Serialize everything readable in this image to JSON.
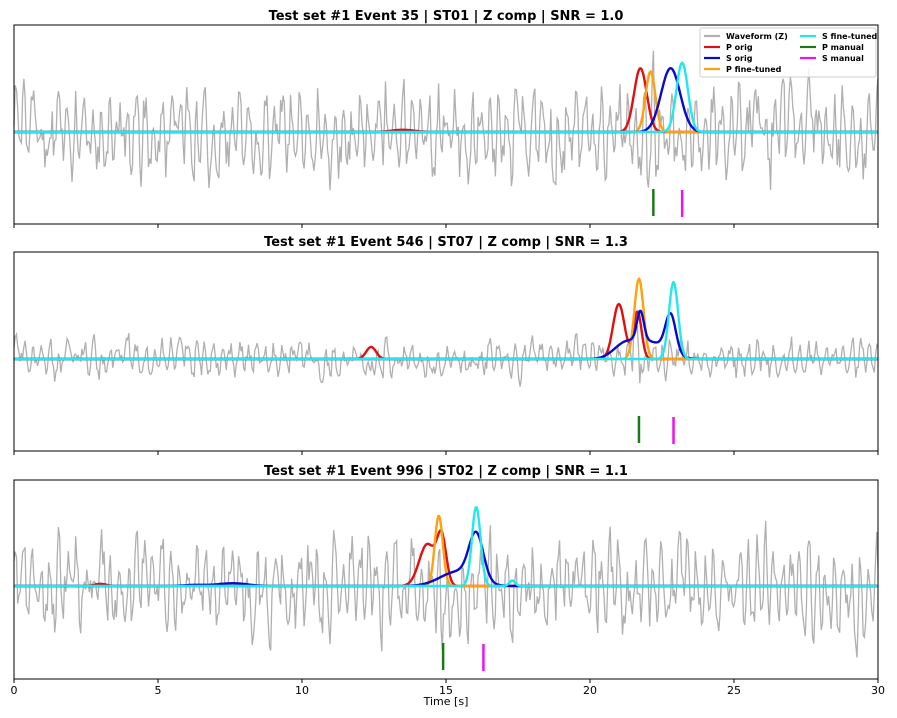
{
  "chart_data": [
    {
      "type": "line",
      "title": "Test set #1 Event 35 | ST01 | Z comp |  SNR = 1.0",
      "xlim": [
        0,
        30
      ],
      "xlabel": "",
      "show_legend": true,
      "waveform": {
        "name": "Waveform (Z)",
        "color": "#b0b0b0",
        "amplitude": 0.55,
        "seed": 35
      },
      "probability_series": [
        {
          "name": "P orig",
          "color": "#e01010",
          "peaks": [
            {
              "center": 21.75,
              "width": 0.22,
              "height": 0.58
            },
            {
              "center": 13.5,
              "width": 0.4,
              "height": 0.02
            }
          ]
        },
        {
          "name": "S orig",
          "color": "#0a0acc",
          "peaks": [
            {
              "center": 22.8,
              "width": 0.33,
              "height": 0.58
            }
          ]
        },
        {
          "name": "P fine-tuned",
          "color": "#ffa010",
          "peaks": [
            {
              "center": 22.1,
              "width": 0.17,
              "height": 0.55
            }
          ]
        },
        {
          "name": "S fine-tuned",
          "color": "#22e8ee",
          "peaks": [
            {
              "center": 23.2,
              "width": 0.2,
              "height": 0.63
            }
          ]
        }
      ],
      "manual_picks": [
        {
          "name": "P manual",
          "color": "#1a7a1a",
          "time": 22.2
        },
        {
          "name": "S manual",
          "color": "#ee10ee",
          "time": 23.2
        }
      ]
    },
    {
      "type": "line",
      "title": "Test set #1 Event 546 | ST07 | Z comp |  SNR = 1.3",
      "xlim": [
        0,
        30
      ],
      "xlabel": "",
      "show_legend": false,
      "waveform": {
        "name": "Waveform (Z)",
        "color": "#b0b0b0",
        "amplitude": 0.22,
        "seed": 546
      },
      "probability_series": [
        {
          "name": "P orig",
          "color": "#e01010",
          "peaks": [
            {
              "center": 12.4,
              "width": 0.17,
              "height": 0.11
            },
            {
              "center": 21.0,
              "width": 0.2,
              "height": 0.5
            },
            {
              "center": 21.65,
              "width": 0.14,
              "height": 0.43
            }
          ]
        },
        {
          "name": "S orig",
          "color": "#0a0acc",
          "peaks": [
            {
              "center": 21.2,
              "width": 0.4,
              "height": 0.12
            },
            {
              "center": 22.1,
              "width": 0.55,
              "height": 0.15
            },
            {
              "center": 22.8,
              "width": 0.18,
              "height": 0.35
            },
            {
              "center": 21.75,
              "width": 0.12,
              "height": 0.27
            }
          ]
        },
        {
          "name": "P fine-tuned",
          "color": "#ffa010",
          "peaks": [
            {
              "center": 21.7,
              "width": 0.16,
              "height": 0.73
            }
          ]
        },
        {
          "name": "S fine-tuned",
          "color": "#22e8ee",
          "peaks": [
            {
              "center": 22.9,
              "width": 0.16,
              "height": 0.7
            }
          ]
        }
      ],
      "manual_picks": [
        {
          "name": "P manual",
          "color": "#1a7a1a",
          "time": 21.7
        },
        {
          "name": "S manual",
          "color": "#ee10ee",
          "time": 22.9
        }
      ]
    },
    {
      "type": "line",
      "title": "Test set #1 Event 996 | ST02 | Z comp |  SNR = 1.1",
      "xlim": [
        0,
        30
      ],
      "xlabel": "Time [s]",
      "show_legend": false,
      "waveform": {
        "name": "Waveform (Z)",
        "color": "#b0b0b0",
        "amplitude": 0.55,
        "seed": 996
      },
      "probability_series": [
        {
          "name": "P orig",
          "color": "#e01010",
          "peaks": [
            {
              "center": 14.35,
              "width": 0.28,
              "height": 0.38
            },
            {
              "center": 14.85,
              "width": 0.16,
              "height": 0.42
            },
            {
              "center": 3.0,
              "width": 0.2,
              "height": 0.02
            }
          ]
        },
        {
          "name": "S orig",
          "color": "#0a0acc",
          "peaks": [
            {
              "center": 15.4,
              "width": 0.6,
              "height": 0.13
            },
            {
              "center": 16.05,
              "width": 0.25,
              "height": 0.42
            },
            {
              "center": 7.6,
              "width": 0.5,
              "height": 0.025
            },
            {
              "center": 6.3,
              "width": 0.4,
              "height": 0.01
            }
          ]
        },
        {
          "name": "P fine-tuned",
          "color": "#ffa010",
          "peaks": [
            {
              "center": 14.75,
              "width": 0.14,
              "height": 0.64
            }
          ]
        },
        {
          "name": "S fine-tuned",
          "color": "#22e8ee",
          "peaks": [
            {
              "center": 16.05,
              "width": 0.15,
              "height": 0.72
            },
            {
              "center": 17.3,
              "width": 0.1,
              "height": 0.05
            }
          ]
        }
      ],
      "manual_picks": [
        {
          "name": "P manual",
          "color": "#1a7a1a",
          "time": 14.9
        },
        {
          "name": "S manual",
          "color": "#ee10ee",
          "time": 16.3
        }
      ]
    }
  ],
  "x_ticks": [
    0,
    5,
    10,
    15,
    20,
    25,
    30
  ],
  "legend": {
    "placement": "top-right",
    "entries": [
      {
        "label": "Waveform (Z)",
        "color": "#b0b0b0"
      },
      {
        "label": "P orig",
        "color": "#e01010"
      },
      {
        "label": "S orig",
        "color": "#0a0acc"
      },
      {
        "label": "P fine-tuned",
        "color": "#ffa010"
      },
      {
        "label": "S fine-tuned",
        "color": "#22e8ee"
      },
      {
        "label": "P manual",
        "color": "#1a7a1a"
      },
      {
        "label": "S manual",
        "color": "#ee10ee"
      }
    ]
  }
}
